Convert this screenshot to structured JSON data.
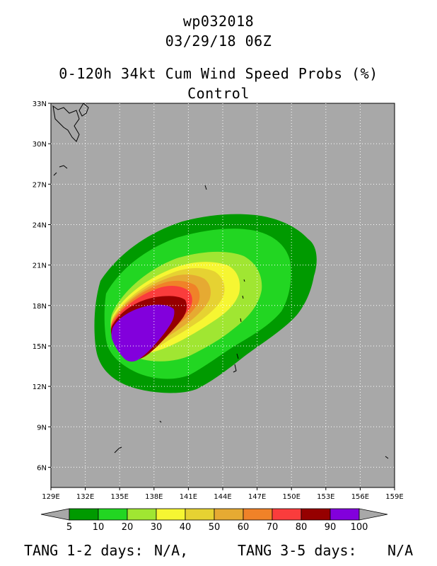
{
  "header": {
    "storm_id": "wp032018",
    "datetime": "03/29/18 06Z",
    "product": "0-120h 34kt Cum Wind Speed Probs (%)",
    "run": "Control"
  },
  "map": {
    "lon_ticks": [
      "129E",
      "132E",
      "135E",
      "138E",
      "141E",
      "144E",
      "147E",
      "150E",
      "153E",
      "156E",
      "159E"
    ],
    "lat_ticks": [
      "33N",
      "30N",
      "27N",
      "24N",
      "21N",
      "18N",
      "15N",
      "12N",
      "9N",
      "6N"
    ],
    "background_color": "#a8a8a8",
    "grid": "dotted-white"
  },
  "colorbar": {
    "labels": [
      "5",
      "10",
      "20",
      "30",
      "40",
      "50",
      "60",
      "70",
      "80",
      "90",
      "100"
    ],
    "colors": [
      "#009a00",
      "#22d622",
      "#a0e632",
      "#f6f632",
      "#e6d232",
      "#e6aa32",
      "#f08228",
      "#fa3c3c",
      "#960000",
      "#8200dc"
    ]
  },
  "footer": {
    "tang_12_label": "TANG 1-2 days:",
    "tang_12_value": "N/A,",
    "tang_35_label": "TANG 3-5 days:",
    "tang_35_value": "N/A"
  }
}
